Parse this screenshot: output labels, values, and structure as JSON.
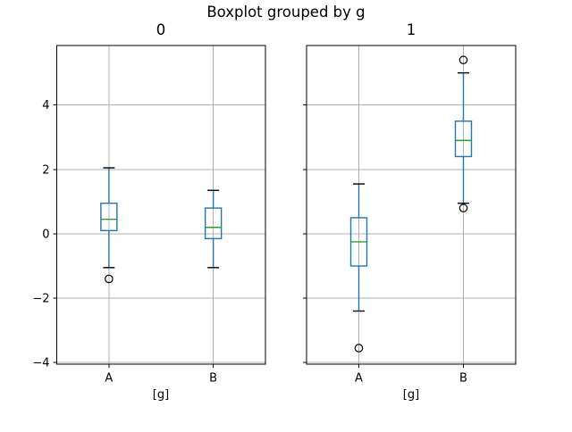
{
  "colors": {
    "box": "#1f77b4",
    "whisker": "#1f77b4",
    "median": "#2ca02c",
    "cap": "#000000",
    "flier_edge": "#000000",
    "grid": "#b0b0b0",
    "spine": "#000000",
    "text": "#000000",
    "background": "#ffffff"
  },
  "chart_data": {
    "type": "boxplot",
    "title": "Boxplot grouped by g",
    "group_label": "g",
    "grid": true,
    "legend": "none",
    "ylim": [
      -4.05,
      5.85
    ],
    "yticks": [
      -4,
      -2,
      0,
      2,
      4
    ],
    "subplots": [
      {
        "title": "0",
        "xlabel": "[g]",
        "categories": [
          "A",
          "B"
        ],
        "show_ytick_labels": true,
        "boxes": [
          {
            "category": "A",
            "whisker_low": -1.05,
            "q1": 0.1,
            "median": 0.45,
            "q3": 0.95,
            "whisker_high": 2.05,
            "outliers": [
              -1.4
            ]
          },
          {
            "category": "B",
            "whisker_low": -1.05,
            "q1": -0.15,
            "median": 0.2,
            "q3": 0.8,
            "whisker_high": 1.35,
            "outliers": []
          }
        ]
      },
      {
        "title": "1",
        "xlabel": "[g]",
        "categories": [
          "A",
          "B"
        ],
        "show_ytick_labels": false,
        "boxes": [
          {
            "category": "A",
            "whisker_low": -2.4,
            "q1": -1.0,
            "median": -0.25,
            "q3": 0.5,
            "whisker_high": 1.55,
            "outliers": [
              -3.55
            ]
          },
          {
            "category": "B",
            "whisker_low": 0.95,
            "q1": 2.4,
            "median": 2.9,
            "q3": 3.5,
            "whisker_high": 5.0,
            "outliers": [
              5.4,
              0.8
            ]
          }
        ]
      }
    ]
  }
}
